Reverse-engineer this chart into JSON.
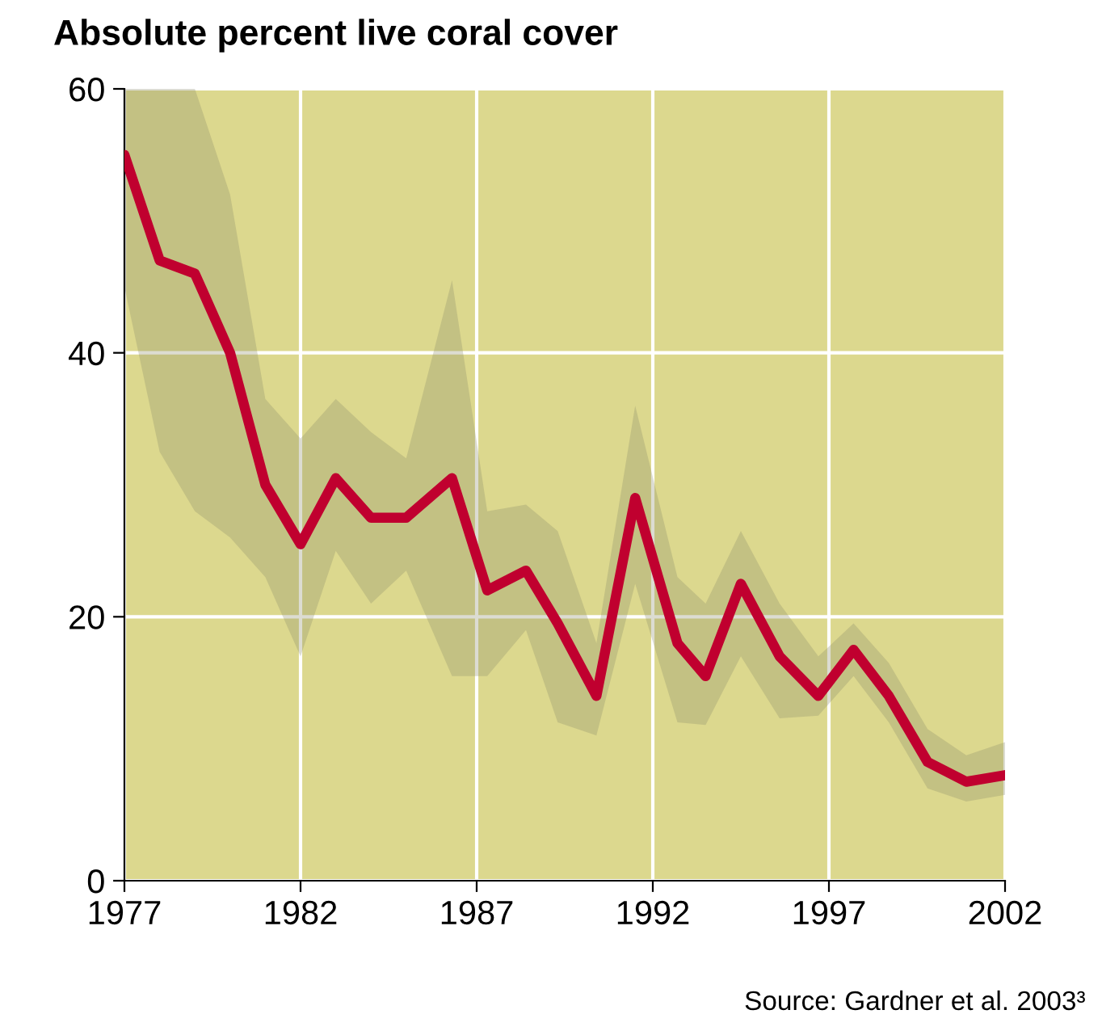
{
  "chart_data": {
    "type": "line",
    "title": "Absolute percent live coral cover",
    "annotations": [
      "Source: Gardner et al. 2003³"
    ],
    "series": [
      {
        "color": "#c0002f",
        "x": [
          1977,
          1978,
          1979,
          1980,
          1981,
          1982,
          1983,
          1984,
          1985,
          1986.3,
          1987.3,
          1988.4,
          1989.3,
          1990.4,
          1991.5,
          1992.7,
          1993.5,
          1994.5,
          1995.6,
          1996.7,
          1997.7,
          1998.7,
          1999.8,
          2000.9,
          2002
        ],
        "values": [
          55,
          47,
          46,
          40,
          30,
          25.5,
          30.5,
          27.5,
          27.5,
          30.5,
          22,
          23.5,
          19.5,
          14,
          29,
          18,
          15.5,
          22.5,
          17,
          14,
          17.5,
          14,
          9,
          7.5,
          8
        ],
        "upper": [
          60,
          60,
          60,
          52,
          36.5,
          33.5,
          36.5,
          34,
          32,
          45.5,
          28,
          28.5,
          26.5,
          18,
          36,
          23,
          21,
          26.5,
          21,
          17,
          19.5,
          16.5,
          11.5,
          9.5,
          10.5
        ],
        "lower": [
          45,
          32.5,
          28,
          26,
          23,
          17,
          25,
          21,
          23.5,
          15.5,
          15.5,
          19,
          12,
          11,
          22.5,
          12,
          11.8,
          17,
          12.3,
          12.5,
          15.5,
          12,
          7,
          6,
          6.5
        ]
      }
    ],
    "xlim": [
      1977,
      2002
    ],
    "xticks": [
      1977,
      1982,
      1987,
      1992,
      1997,
      2002
    ],
    "ylim": [
      0,
      60
    ],
    "yticks": [
      0,
      20,
      40,
      60
    ],
    "grid": true,
    "line_style": "solid",
    "marker": "none"
  }
}
